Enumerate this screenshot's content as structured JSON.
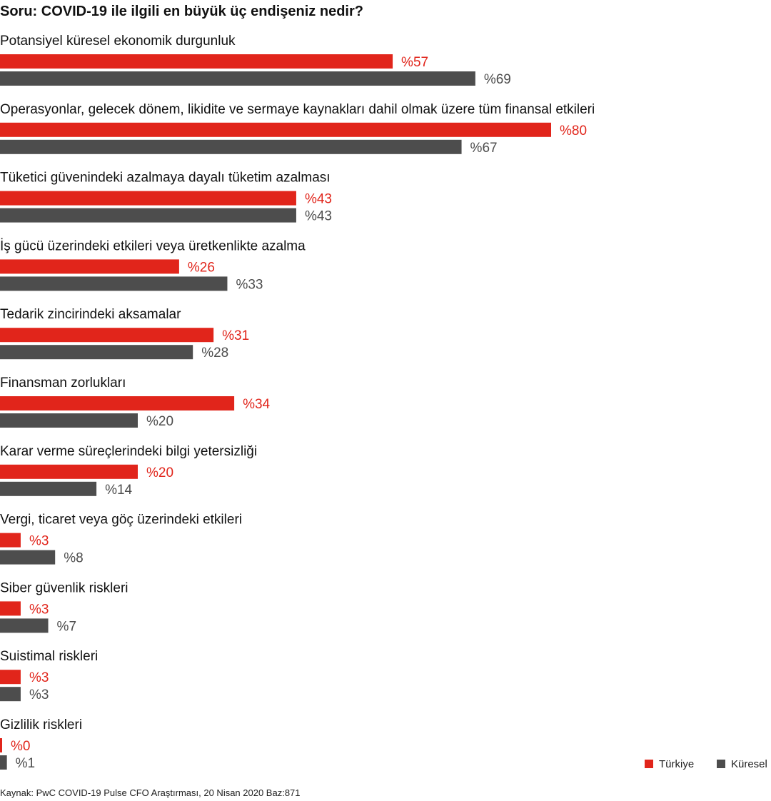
{
  "chart_data": {
    "type": "bar",
    "orientation": "horizontal",
    "title": "Soru: COVID-19 ile ilgili en büyük üç endişeniz nedir?",
    "value_prefix": "%",
    "categories": [
      "Potansiyel küresel ekonomik durgunluk",
      "Operasyonlar, gelecek dönem, likidite ve sermaye kaynakları dahil olmak üzere tüm  finansal etkileri",
      "Tüketici güvenindeki azalmaya dayalı tüketim azalması",
      "İş gücü üzerindeki etkileri veya üretkenlikte azalma",
      "Tedarik zincirindeki aksamalar",
      "Finansman zorlukları",
      "Karar verme süreçlerindeki  bilgi yetersizliği",
      "Vergi, ticaret veya göç üzerindeki etkileri",
      "Siber güvenlik riskleri",
      "Suistimal riskleri",
      "Gizlilik riskleri"
    ],
    "series": [
      {
        "name": "Türkiye",
        "color": "#e1251b",
        "values": [
          57,
          80,
          43,
          26,
          31,
          34,
          20,
          3,
          3,
          3,
          0
        ]
      },
      {
        "name": "Küresel",
        "color": "#4d4d4d",
        "values": [
          69,
          67,
          43,
          33,
          28,
          20,
          14,
          8,
          7,
          3,
          1
        ]
      }
    ],
    "legend_position": "bottom-right",
    "grid": false
  },
  "source": "Kaynak: PwC COVID-19 Pulse CFO Araştırması, 20 Nisan 2020 Baz:871"
}
